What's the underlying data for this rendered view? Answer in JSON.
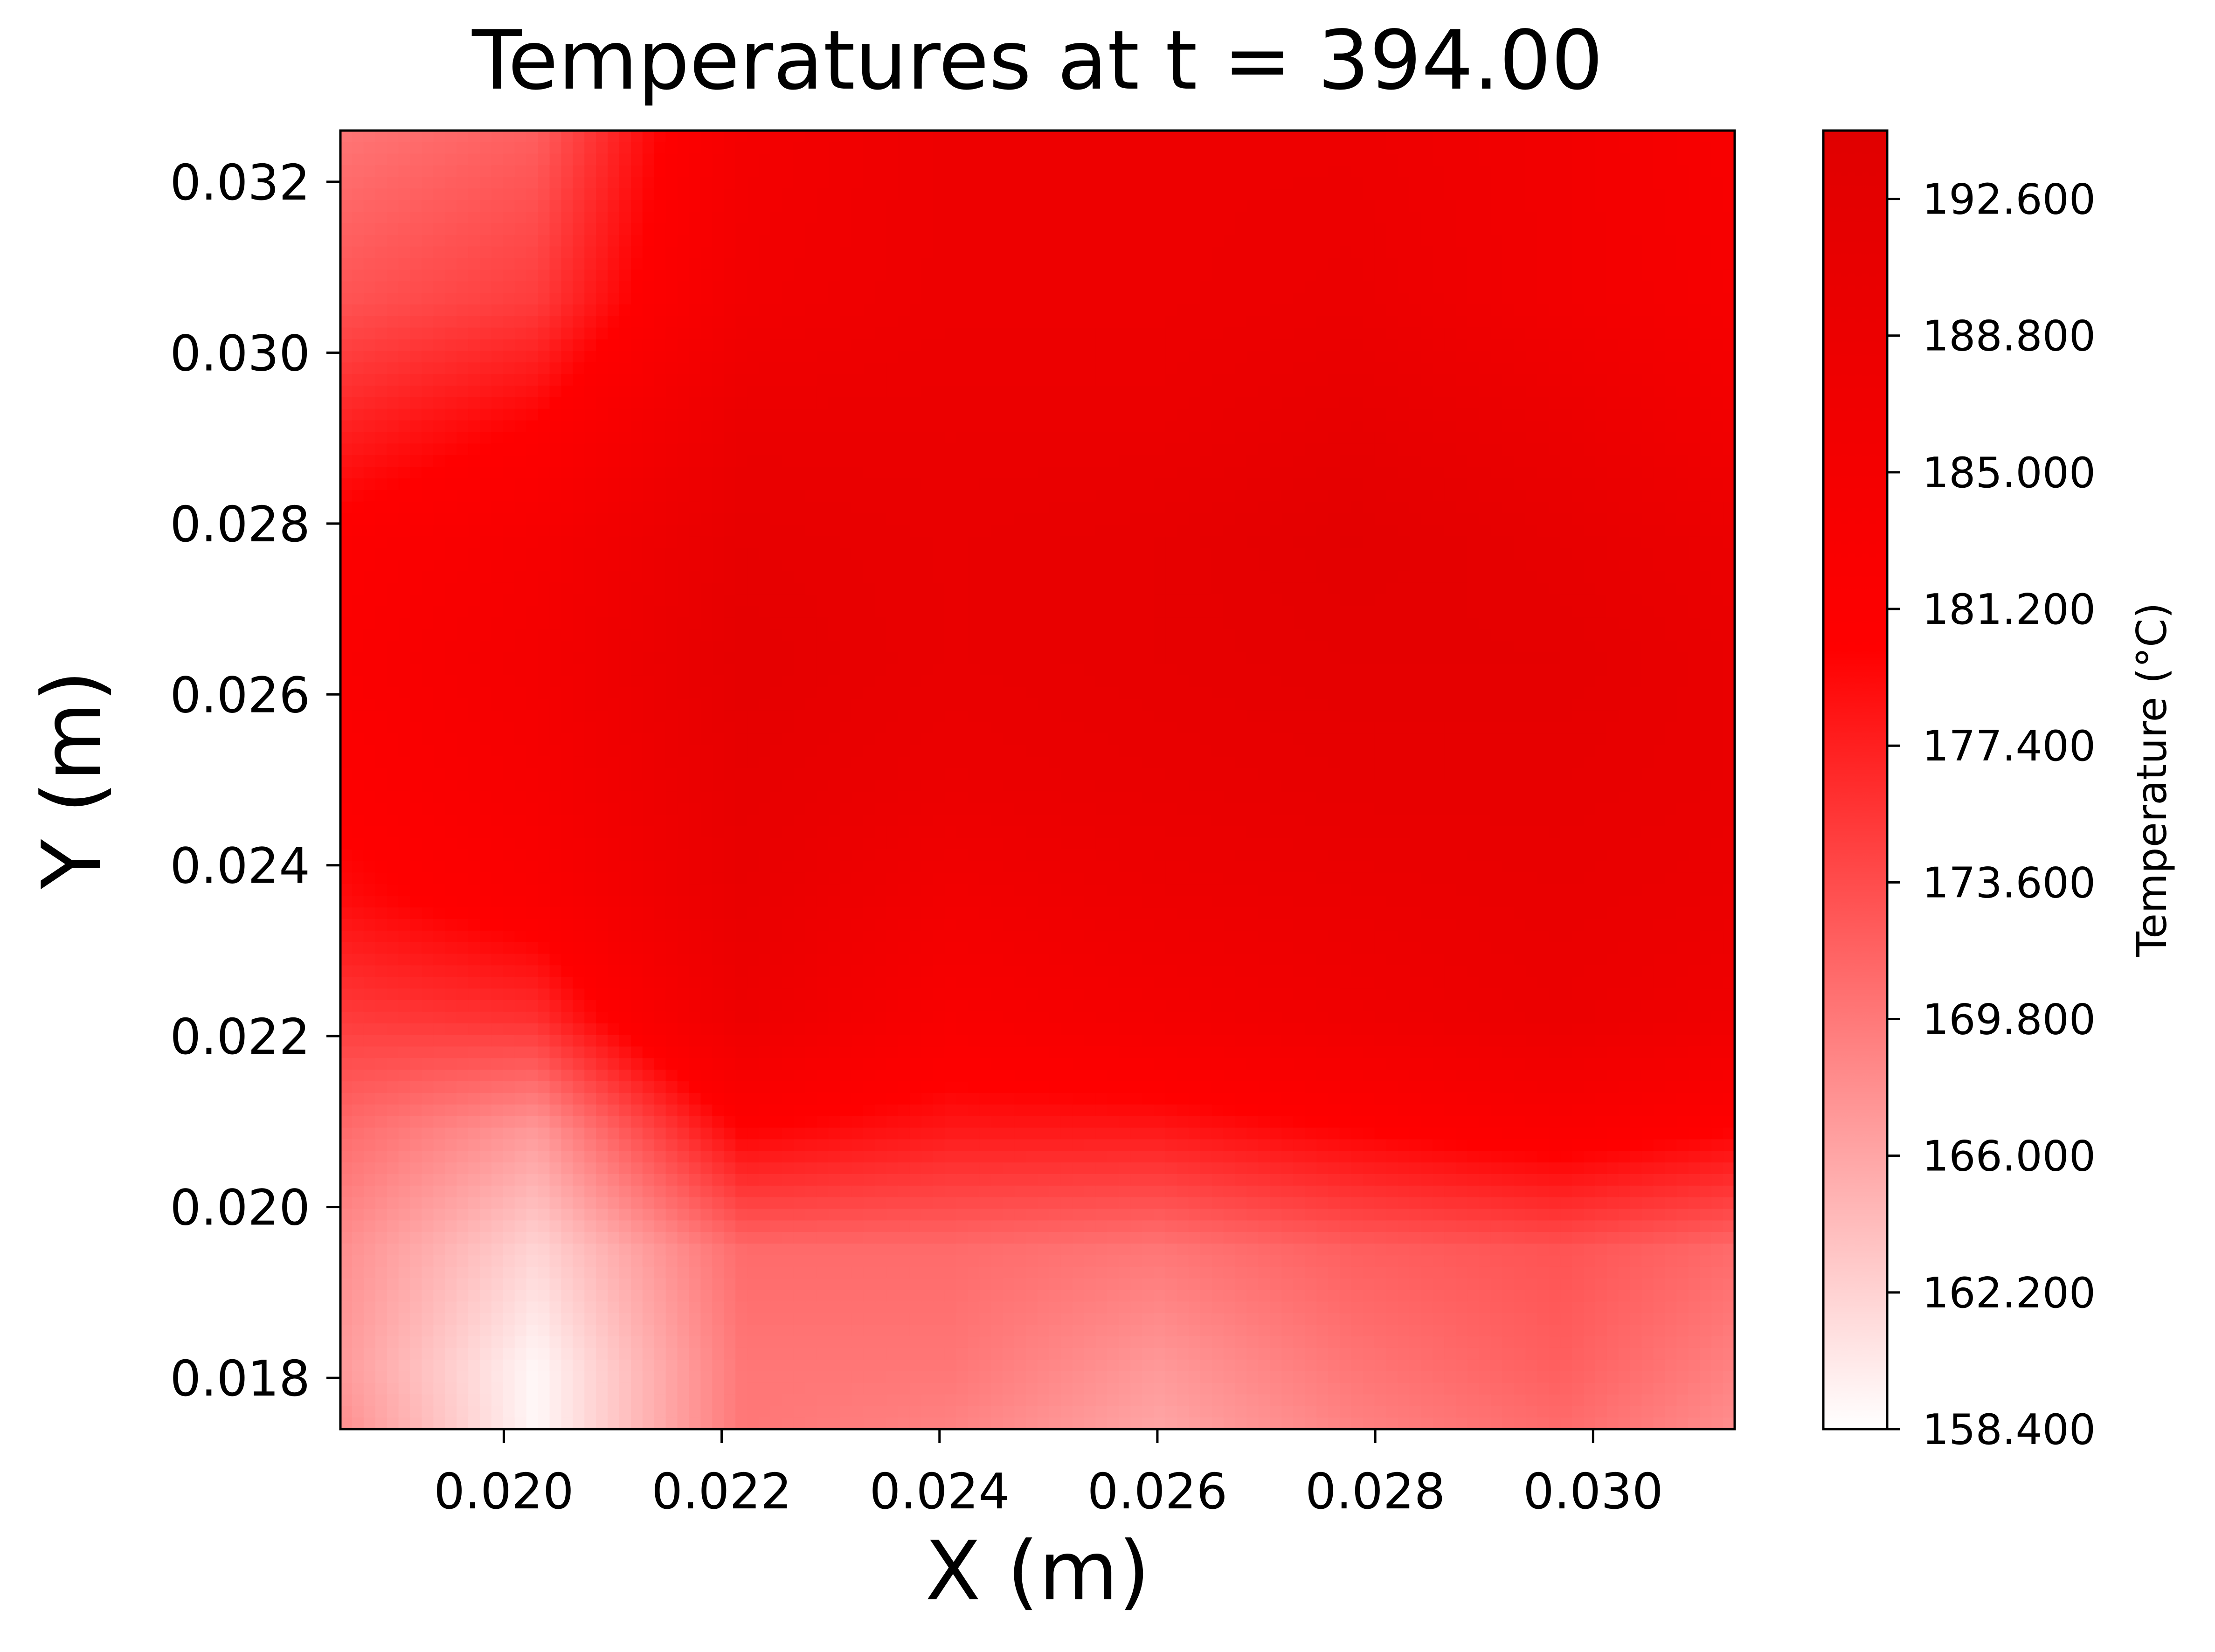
{
  "chart_data": {
    "type": "heatmap",
    "title": "Temperatures at t = 394.00",
    "xlabel": "X (m)",
    "ylabel": "Y (m)",
    "xlim": [
      0.0185,
      0.0313
    ],
    "ylim": [
      0.0174,
      0.0326
    ],
    "x_ticks": [
      "0.020",
      "0.022",
      "0.024",
      "0.026",
      "0.028",
      "0.030"
    ],
    "y_ticks": [
      "0.018",
      "0.020",
      "0.022",
      "0.024",
      "0.026",
      "0.028",
      "0.030",
      "0.032"
    ],
    "grid": false,
    "colorbar": {
      "label": "Temperature (°C)",
      "min": 158.4,
      "max": 194.5,
      "ticks": [
        "158.400",
        "162.200",
        "166.000",
        "169.800",
        "173.600",
        "177.400",
        "181.200",
        "185.000",
        "188.800",
        "192.600"
      ],
      "colormap": [
        "#ffffff",
        "#ff0000",
        "#e00000"
      ]
    },
    "x": [
      0.0185,
      0.0203,
      0.0222,
      0.0241,
      0.026,
      0.0278,
      0.0297,
      0.0313
    ],
    "y": [
      0.0174,
      0.0181,
      0.0195,
      0.0209,
      0.0222,
      0.0236,
      0.025,
      0.0264,
      0.0278,
      0.0292,
      0.0306,
      0.0326
    ],
    "z": [
      [
        168,
        159,
        170,
        169,
        166,
        169,
        171,
        168
      ],
      [
        167,
        159,
        170,
        170,
        167,
        170,
        172,
        169
      ],
      [
        168,
        162,
        171,
        171,
        170,
        172,
        173,
        171
      ],
      [
        171,
        167,
        180,
        178,
        178,
        180,
        182,
        180
      ],
      [
        175,
        176,
        188,
        183,
        185,
        187,
        189,
        187
      ],
      [
        179,
        182,
        190,
        186,
        188,
        189,
        190,
        189
      ],
      [
        181,
        184,
        191,
        189,
        190,
        191,
        191,
        190
      ],
      [
        182,
        185,
        192,
        190,
        191,
        192,
        192,
        190
      ],
      [
        181,
        184,
        191,
        190,
        191,
        193,
        191,
        189
      ],
      [
        177,
        180,
        189,
        189,
        189,
        191,
        189,
        186
      ],
      [
        173,
        175,
        186,
        188,
        188,
        189,
        186,
        184
      ],
      [
        170,
        172,
        185,
        188,
        188,
        188,
        186,
        183
      ]
    ]
  }
}
